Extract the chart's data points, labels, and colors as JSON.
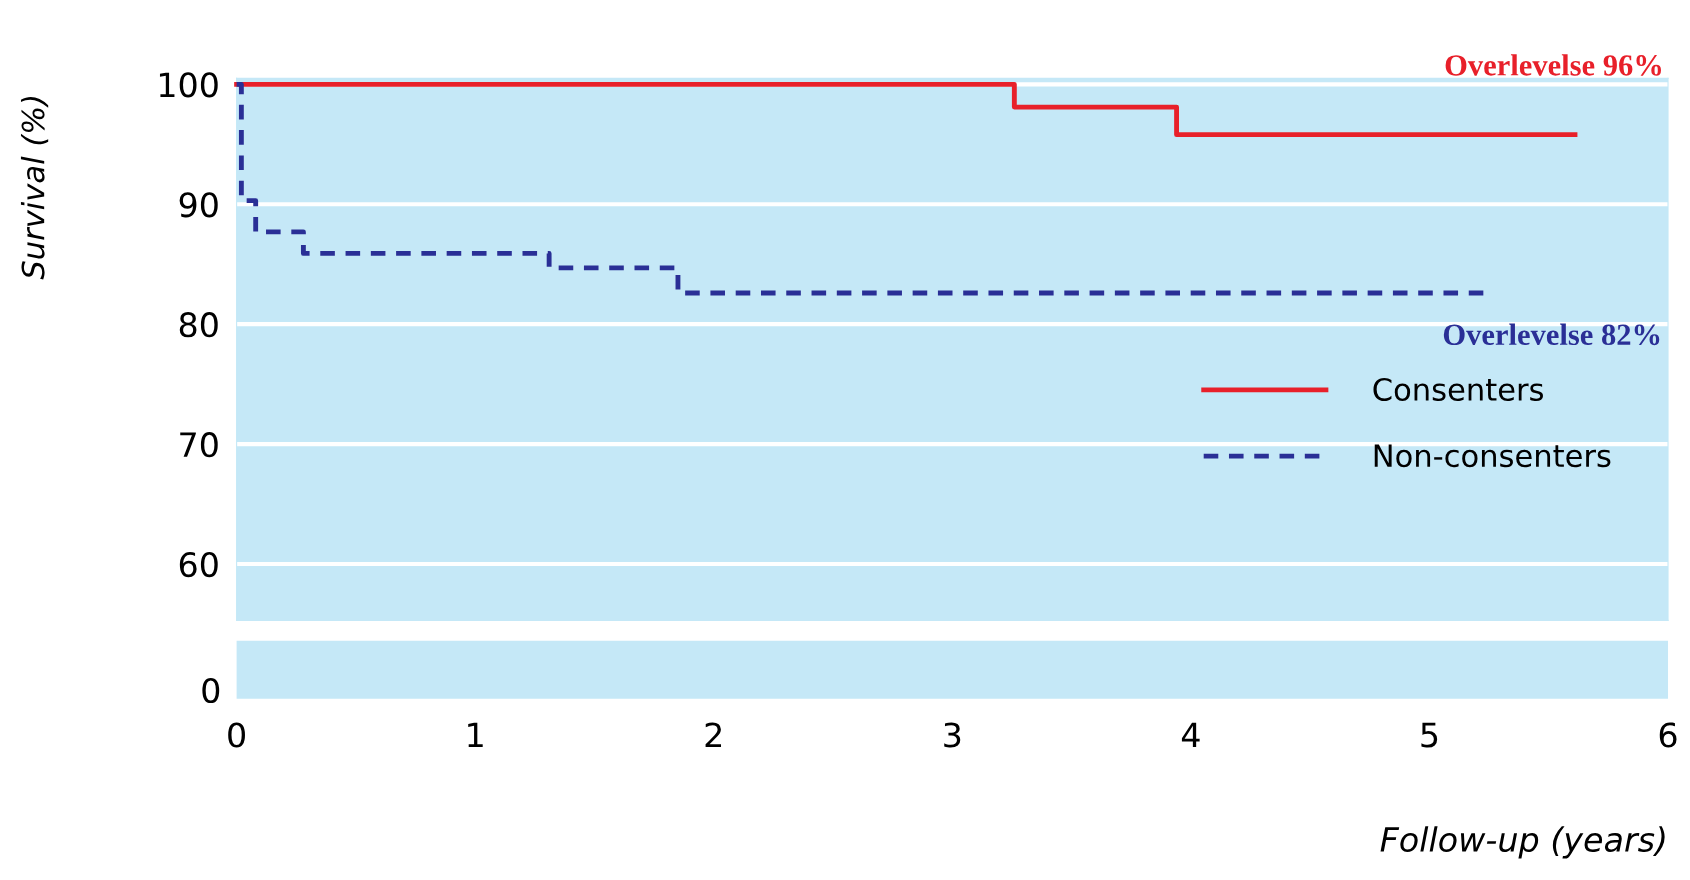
{
  "chart_data": {
    "type": "step",
    "ylabel": "Survival (%)",
    "xlabel": "Follow-up (years)",
    "xlim": [
      0,
      6
    ],
    "ylim": [
      55.3,
      100.5
    ],
    "xticks": [
      0,
      1,
      2,
      3,
      4,
      5,
      6
    ],
    "yticks": [
      60,
      70,
      80,
      90,
      100
    ],
    "grid": "y",
    "legend": "right",
    "series": [
      {
        "name": "Consenters",
        "color": "#e8202a",
        "line_style": "solid",
        "x": [
          0,
          3.26,
          3.94,
          5.61
        ],
        "values": [
          100,
          98.1,
          95.8,
          95.8
        ]
      },
      {
        "name": "Non-consenters",
        "color": "#2a2f96",
        "line_style": "dashed",
        "x": [
          0,
          0.02,
          0.08,
          0.28,
          1.31,
          1.85,
          5.23
        ],
        "values": [
          100,
          90.3,
          87.7,
          85.9,
          84.7,
          82.6,
          82.6
        ]
      }
    ],
    "annotations": [
      {
        "text": "Overlevelse 96%",
        "x": 5.61,
        "y": 95.8
      },
      {
        "text": "Overlevelse 82%",
        "x": 5.23,
        "y": 82.6
      },
      "0"
    ]
  }
}
